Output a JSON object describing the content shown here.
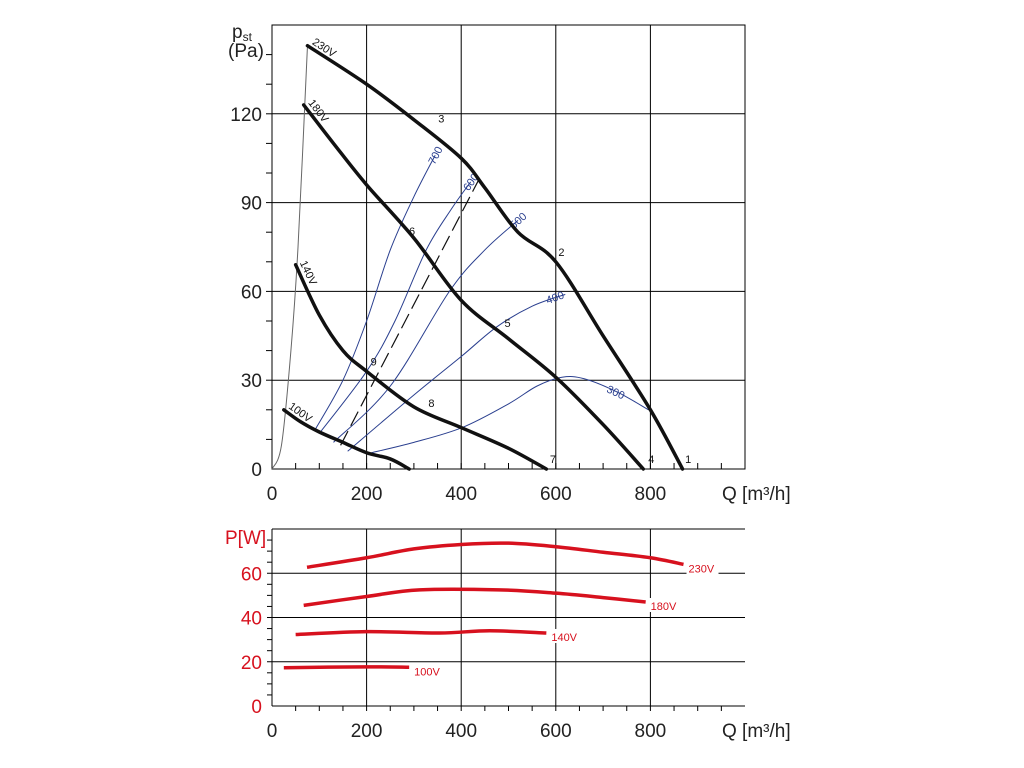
{
  "chart_data": [
    {
      "type": "line",
      "title": "",
      "ylabel": "pst",
      "ylabel_unit": "(Pa)",
      "xlabel": "Q [m³/h]",
      "xlim": [
        0,
        1000
      ],
      "ylim": [
        0,
        150
      ],
      "xticks": [
        0,
        200,
        400,
        600,
        800
      ],
      "yticks": [
        0,
        30,
        60,
        90,
        120
      ],
      "grid": true,
      "colors": {
        "fan": "#111111",
        "iso": "#2a3f8f",
        "system": "#666666"
      },
      "fan_curves": [
        {
          "name": "230V",
          "points": [
            [
              75,
              143
            ],
            [
              200,
              130
            ],
            [
              300,
              118
            ],
            [
              400,
              105
            ],
            [
              450,
              95
            ],
            [
              520,
              80
            ],
            [
              600,
              70
            ],
            [
              700,
              45
            ],
            [
              800,
              20
            ],
            [
              868,
              0
            ]
          ]
        },
        {
          "name": "180V",
          "points": [
            [
              67,
              123
            ],
            [
              130,
              110
            ],
            [
              200,
              96
            ],
            [
              300,
              78
            ],
            [
              400,
              57
            ],
            [
              500,
              44
            ],
            [
              600,
              31
            ],
            [
              700,
              15
            ],
            [
              785,
              0
            ]
          ]
        },
        {
          "name": "140V",
          "points": [
            [
              50,
              69
            ],
            [
              100,
              52
            ],
            [
              150,
              40
            ],
            [
              200,
              33
            ],
            [
              300,
              21
            ],
            [
              400,
              14
            ],
            [
              500,
              7
            ],
            [
              580,
              0
            ]
          ]
        },
        {
          "name": "100V",
          "points": [
            [
              25,
              20
            ],
            [
              60,
              16
            ],
            [
              100,
              12.5
            ],
            [
              150,
              9
            ],
            [
              200,
              5.5
            ],
            [
              250,
              3.4
            ],
            [
              290,
              0
            ]
          ]
        }
      ],
      "system_curve": {
        "points": [
          [
            0,
            0
          ],
          [
            20,
            8
          ],
          [
            40,
            40
          ],
          [
            55,
            75
          ],
          [
            75,
            143
          ]
        ]
      },
      "dashed_line": {
        "points": [
          [
            145,
            8
          ],
          [
            438,
            98
          ]
        ]
      },
      "iso_lines": [
        {
          "name": "700",
          "points": [
            [
              90,
              13
            ],
            [
              150,
              30
            ],
            [
              200,
              50
            ],
            [
              250,
              74
            ],
            [
              300,
              92
            ],
            [
              345,
              106
            ]
          ]
        },
        {
          "name": "600",
          "points": [
            [
              100,
              12
            ],
            [
              200,
              33
            ],
            [
              260,
              50
            ],
            [
              326,
              74
            ],
            [
              380,
              88
            ],
            [
              420,
              97
            ]
          ]
        },
        {
          "name": "500",
          "points": [
            [
              130,
              9
            ],
            [
              250,
              28
            ],
            [
              375,
              60
            ],
            [
              450,
              74
            ],
            [
              520,
              84
            ]
          ]
        },
        {
          "name": "400",
          "points": [
            [
              160,
              6
            ],
            [
              300,
              25
            ],
            [
              400,
              38
            ],
            [
              475,
              48
            ],
            [
              550,
              55
            ],
            [
              620,
              59
            ]
          ]
        },
        {
          "name": "300",
          "points": [
            [
              210,
              5.5
            ],
            [
              300,
              9
            ],
            [
              402,
              14
            ],
            [
              500,
              22
            ],
            [
              560,
              28
            ],
            [
              613,
              31
            ],
            [
              660,
              30.5
            ],
            [
              730,
              26
            ],
            [
              796,
              20
            ]
          ]
        }
      ],
      "point_labels": [
        {
          "name": "1",
          "x": 880,
          "y": 2
        },
        {
          "name": "2",
          "x": 612,
          "y": 72
        },
        {
          "name": "3",
          "x": 358,
          "y": 117
        },
        {
          "name": "4",
          "x": 802,
          "y": 2
        },
        {
          "name": "5",
          "x": 498,
          "y": 48
        },
        {
          "name": "6",
          "x": 296,
          "y": 79
        },
        {
          "name": "7",
          "x": 594,
          "y": 2
        },
        {
          "name": "8",
          "x": 337,
          "y": 21
        },
        {
          "name": "9",
          "x": 215,
          "y": 35
        }
      ]
    },
    {
      "type": "line",
      "title": "",
      "ylabel": "P[W]",
      "xlabel": "Q [m³/h]",
      "xlim": [
        0,
        1000
      ],
      "ylim": [
        0,
        80
      ],
      "xticks": [
        0,
        200,
        400,
        600,
        800
      ],
      "yticks": [
        0,
        20,
        40,
        60
      ],
      "grid": true,
      "color": "#d7111e",
      "series": [
        {
          "name": "230V",
          "points": [
            [
              74,
              62.7
            ],
            [
              200,
              67
            ],
            [
              300,
              71
            ],
            [
              400,
              73
            ],
            [
              500,
              73.6
            ],
            [
              600,
              72
            ],
            [
              700,
              69.5
            ],
            [
              800,
              67
            ],
            [
              870,
              64
            ]
          ]
        },
        {
          "name": "180V",
          "points": [
            [
              67,
              45.5
            ],
            [
              200,
              49.5
            ],
            [
              312,
              52.5
            ],
            [
              480,
              52.5
            ],
            [
              600,
              51
            ],
            [
              700,
              49
            ],
            [
              790,
              47
            ]
          ]
        },
        {
          "name": "140V",
          "points": [
            [
              50,
              32.3
            ],
            [
              200,
              33.6
            ],
            [
              354,
              33
            ],
            [
              460,
              34
            ],
            [
              580,
              33
            ]
          ]
        },
        {
          "name": "100V",
          "points": [
            [
              25,
              17.3
            ],
            [
              200,
              17.7
            ],
            [
              290,
              17.5
            ]
          ]
        }
      ]
    }
  ]
}
